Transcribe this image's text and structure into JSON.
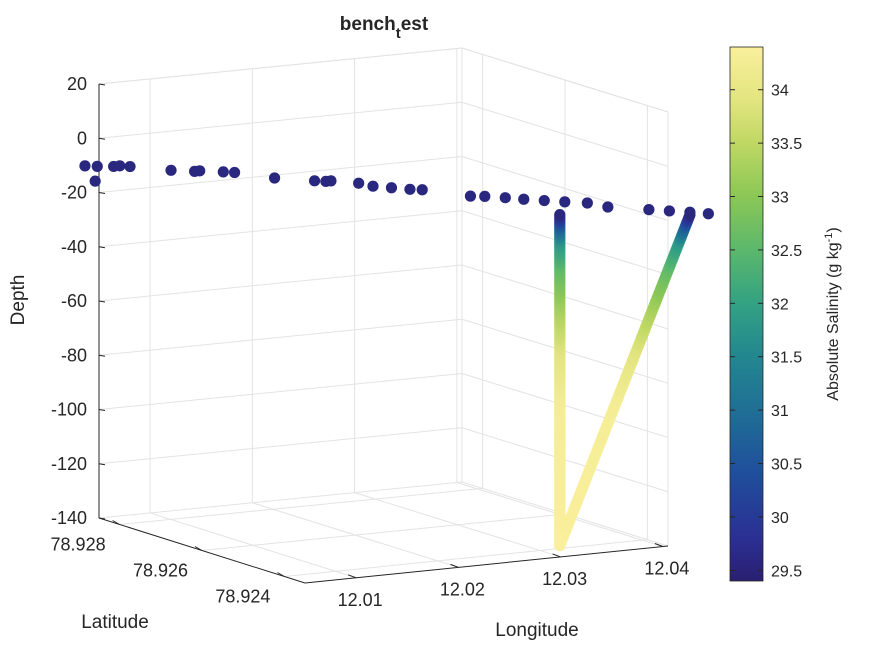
{
  "chart_data": {
    "type": "scatter",
    "projection": "3d",
    "title": {
      "main": "bench",
      "subscript": "t",
      "rest": "est"
    },
    "xlabel": "Longitude",
    "ylabel": "Latitude",
    "zlabel": "Depth",
    "x_ticks": [
      "12.01",
      "12.02",
      "12.03",
      "12.04"
    ],
    "y_ticks": [
      "78.928",
      "78.926",
      "78.924"
    ],
    "z_ticks": [
      "20",
      "0",
      "-20",
      "-40",
      "-60",
      "-80",
      "-100",
      "-120",
      "-140"
    ],
    "zlim": [
      -140,
      20
    ],
    "grid": true,
    "colormap": "parula",
    "colorbar": {
      "label": "Absolute Salinity (g kg",
      "label_superscript": "-1",
      "label_close": ")",
      "range": [
        29.4,
        34.4
      ],
      "ticks": [
        "34",
        "33.5",
        "33",
        "32.5",
        "32",
        "31.5",
        "31",
        "30.5",
        "30",
        "29.5"
      ]
    },
    "surface_points": [
      {
        "lon": 12.0,
        "lat": 78.9276,
        "depth": -4,
        "salinity": 29.6
      },
      {
        "lon": 12.0008,
        "lat": 78.9275,
        "depth": -4,
        "salinity": 29.6
      },
      {
        "lon": 12.002,
        "lat": 78.9274,
        "depth": -4,
        "salinity": 29.6
      },
      {
        "lon": 12.0026,
        "lat": 78.9274,
        "depth": -4,
        "salinity": 29.6
      },
      {
        "lon": 12.0032,
        "lat": 78.9273,
        "depth": -4,
        "salinity": 29.6
      },
      {
        "lon": 12.001,
        "lat": 78.9276,
        "depth": -10,
        "salinity": 29.6
      },
      {
        "lon": 12.006,
        "lat": 78.927,
        "depth": -5,
        "salinity": 29.6
      },
      {
        "lon": 12.0075,
        "lat": 78.9268,
        "depth": -5,
        "salinity": 29.6
      },
      {
        "lon": 12.008,
        "lat": 78.9268,
        "depth": -5,
        "salinity": 29.6
      },
      {
        "lon": 12.0095,
        "lat": 78.9266,
        "depth": -5,
        "salinity": 29.6
      },
      {
        "lon": 12.0102,
        "lat": 78.9265,
        "depth": -5,
        "salinity": 29.6
      },
      {
        "lon": 12.0125,
        "lat": 78.9261,
        "depth": -6,
        "salinity": 29.6
      },
      {
        "lon": 12.0148,
        "lat": 78.9257,
        "depth": -6,
        "salinity": 29.6
      },
      {
        "lon": 12.0155,
        "lat": 78.9256,
        "depth": -6,
        "salinity": 29.6
      },
      {
        "lon": 12.016,
        "lat": 78.9256,
        "depth": -6,
        "salinity": 29.6
      },
      {
        "lon": 12.0175,
        "lat": 78.9253,
        "depth": -6,
        "salinity": 29.6
      },
      {
        "lon": 12.0185,
        "lat": 78.9252,
        "depth": -7,
        "salinity": 29.6
      },
      {
        "lon": 12.0195,
        "lat": 78.925,
        "depth": -7,
        "salinity": 29.6
      },
      {
        "lon": 12.0205,
        "lat": 78.9248,
        "depth": -7,
        "salinity": 29.6
      },
      {
        "lon": 12.0213,
        "lat": 78.9247,
        "depth": -7,
        "salinity": 29.6
      },
      {
        "lon": 12.024,
        "lat": 78.9242,
        "depth": -8,
        "salinity": 29.6
      },
      {
        "lon": 12.025,
        "lat": 78.9241,
        "depth": -8,
        "salinity": 29.6
      },
      {
        "lon": 12.0262,
        "lat": 78.9239,
        "depth": -8,
        "salinity": 29.6
      },
      {
        "lon": 12.0272,
        "lat": 78.9237,
        "depth": -8,
        "salinity": 29.6
      },
      {
        "lon": 12.0284,
        "lat": 78.9235,
        "depth": -8,
        "salinity": 29.6
      },
      {
        "lon": 12.0296,
        "lat": 78.9233,
        "depth": -8,
        "salinity": 29.6
      },
      {
        "lon": 12.031,
        "lat": 78.9231,
        "depth": -8,
        "salinity": 29.6
      },
      {
        "lon": 12.0322,
        "lat": 78.9229,
        "depth": -9,
        "salinity": 29.6
      },
      {
        "lon": 12.0346,
        "lat": 78.9225,
        "depth": -9,
        "salinity": 29.6
      },
      {
        "lon": 12.0358,
        "lat": 78.9223,
        "depth": -9,
        "salinity": 29.6
      },
      {
        "lon": 12.037,
        "lat": 78.9221,
        "depth": -9,
        "salinity": 29.6
      },
      {
        "lon": 12.038,
        "lat": 78.9219,
        "depth": -9,
        "salinity": 29.6
      }
    ],
    "profiles": [
      {
        "name": "",
        "depth_range": [
          -10,
          -132
        ],
        "salinity_by_depth": [
          [
            -10,
            29.6
          ],
          [
            -15,
            30.8
          ],
          [
            -20,
            31.8
          ],
          [
            -30,
            32.6
          ],
          [
            -45,
            33.3
          ],
          [
            -60,
            33.9
          ],
          [
            -80,
            34.3
          ],
          [
            -132,
            34.4
          ]
        ],
        "path": [
          {
            "lon": 12.0275,
            "lat": 78.9229,
            "depth": -10
          },
          {
            "lon": 12.0275,
            "lat": 78.9229,
            "depth": -132
          }
        ]
      },
      {
        "name": "",
        "depth_range": [
          -10,
          -132
        ],
        "salinity_by_depth": [
          [
            -10,
            29.6
          ],
          [
            -15,
            30.8
          ],
          [
            -20,
            31.8
          ],
          [
            -30,
            32.6
          ],
          [
            -45,
            33.3
          ],
          [
            -60,
            33.9
          ],
          [
            -80,
            34.3
          ],
          [
            -132,
            34.4
          ]
        ],
        "path": [
          {
            "lon": 12.037,
            "lat": 78.9221,
            "depth": -10
          },
          {
            "lon": 12.0275,
            "lat": 78.9229,
            "depth": -132
          }
        ]
      }
    ]
  }
}
